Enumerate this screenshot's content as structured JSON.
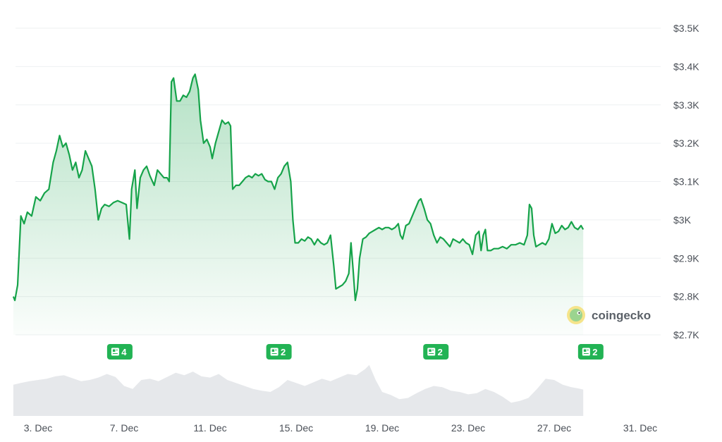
{
  "chart_data": {
    "type": "area",
    "series": [
      {
        "values": [
          [
            1.85,
            2800
          ],
          [
            1.92,
            2790
          ],
          [
            2.05,
            2830
          ],
          [
            2.2,
            3010
          ],
          [
            2.35,
            2990
          ],
          [
            2.5,
            3020
          ],
          [
            2.7,
            3010
          ],
          [
            2.9,
            3060
          ],
          [
            3.1,
            3050
          ],
          [
            3.3,
            3070
          ],
          [
            3.5,
            3080
          ],
          [
            3.7,
            3150
          ],
          [
            3.85,
            3180
          ],
          [
            4.0,
            3220
          ],
          [
            4.15,
            3190
          ],
          [
            4.3,
            3200
          ],
          [
            4.45,
            3170
          ],
          [
            4.6,
            3130
          ],
          [
            4.75,
            3150
          ],
          [
            4.9,
            3110
          ],
          [
            5.05,
            3130
          ],
          [
            5.2,
            3180
          ],
          [
            5.35,
            3160
          ],
          [
            5.5,
            3140
          ],
          [
            5.65,
            3080
          ],
          [
            5.8,
            3000
          ],
          [
            5.95,
            3030
          ],
          [
            6.1,
            3040
          ],
          [
            6.3,
            3035
          ],
          [
            6.5,
            3045
          ],
          [
            6.7,
            3050
          ],
          [
            6.9,
            3045
          ],
          [
            7.1,
            3040
          ],
          [
            7.25,
            2950
          ],
          [
            7.35,
            3080
          ],
          [
            7.5,
            3130
          ],
          [
            7.6,
            3030
          ],
          [
            7.75,
            3110
          ],
          [
            7.9,
            3130
          ],
          [
            8.05,
            3140
          ],
          [
            8.2,
            3115
          ],
          [
            8.4,
            3090
          ],
          [
            8.55,
            3130
          ],
          [
            8.7,
            3120
          ],
          [
            8.85,
            3110
          ],
          [
            9.0,
            3110
          ],
          [
            9.1,
            3100
          ],
          [
            9.2,
            3360
          ],
          [
            9.3,
            3370
          ],
          [
            9.45,
            3310
          ],
          [
            9.6,
            3310
          ],
          [
            9.75,
            3325
          ],
          [
            9.9,
            3320
          ],
          [
            10.05,
            3335
          ],
          [
            10.2,
            3370
          ],
          [
            10.3,
            3380
          ],
          [
            10.45,
            3340
          ],
          [
            10.55,
            3260
          ],
          [
            10.7,
            3200
          ],
          [
            10.85,
            3210
          ],
          [
            11.0,
            3190
          ],
          [
            11.1,
            3160
          ],
          [
            11.25,
            3200
          ],
          [
            11.4,
            3230
          ],
          [
            11.55,
            3260
          ],
          [
            11.7,
            3250
          ],
          [
            11.85,
            3255
          ],
          [
            11.95,
            3245
          ],
          [
            12.05,
            3080
          ],
          [
            12.2,
            3090
          ],
          [
            12.35,
            3090
          ],
          [
            12.5,
            3100
          ],
          [
            12.65,
            3110
          ],
          [
            12.8,
            3115
          ],
          [
            12.95,
            3110
          ],
          [
            13.1,
            3120
          ],
          [
            13.25,
            3115
          ],
          [
            13.4,
            3120
          ],
          [
            13.55,
            3105
          ],
          [
            13.7,
            3100
          ],
          [
            13.85,
            3100
          ],
          [
            14.0,
            3080
          ],
          [
            14.15,
            3110
          ],
          [
            14.3,
            3120
          ],
          [
            14.45,
            3140
          ],
          [
            14.6,
            3150
          ],
          [
            14.75,
            3100
          ],
          [
            14.85,
            3000
          ],
          [
            14.95,
            2940
          ],
          [
            15.1,
            2940
          ],
          [
            15.25,
            2950
          ],
          [
            15.4,
            2945
          ],
          [
            15.55,
            2955
          ],
          [
            15.7,
            2950
          ],
          [
            15.85,
            2935
          ],
          [
            16.0,
            2950
          ],
          [
            16.15,
            2940
          ],
          [
            16.3,
            2935
          ],
          [
            16.45,
            2940
          ],
          [
            16.6,
            2960
          ],
          [
            16.75,
            2880
          ],
          [
            16.85,
            2820
          ],
          [
            17.0,
            2825
          ],
          [
            17.15,
            2830
          ],
          [
            17.3,
            2840
          ],
          [
            17.45,
            2860
          ],
          [
            17.55,
            2940
          ],
          [
            17.65,
            2870
          ],
          [
            17.75,
            2790
          ],
          [
            17.85,
            2820
          ],
          [
            17.95,
            2900
          ],
          [
            18.1,
            2950
          ],
          [
            18.25,
            2955
          ],
          [
            18.4,
            2965
          ],
          [
            18.55,
            2970
          ],
          [
            18.7,
            2975
          ],
          [
            18.85,
            2980
          ],
          [
            19.0,
            2975
          ],
          [
            19.15,
            2980
          ],
          [
            19.3,
            2980
          ],
          [
            19.45,
            2975
          ],
          [
            19.6,
            2980
          ],
          [
            19.75,
            2990
          ],
          [
            19.85,
            2960
          ],
          [
            19.95,
            2950
          ],
          [
            20.1,
            2985
          ],
          [
            20.25,
            2990
          ],
          [
            20.4,
            3010
          ],
          [
            20.55,
            3030
          ],
          [
            20.7,
            3050
          ],
          [
            20.8,
            3055
          ],
          [
            20.95,
            3030
          ],
          [
            21.1,
            3000
          ],
          [
            21.25,
            2990
          ],
          [
            21.4,
            2960
          ],
          [
            21.55,
            2940
          ],
          [
            21.7,
            2955
          ],
          [
            21.85,
            2950
          ],
          [
            22.0,
            2940
          ],
          [
            22.15,
            2930
          ],
          [
            22.3,
            2950
          ],
          [
            22.45,
            2945
          ],
          [
            22.6,
            2940
          ],
          [
            22.75,
            2950
          ],
          [
            22.9,
            2940
          ],
          [
            23.05,
            2935
          ],
          [
            23.2,
            2910
          ],
          [
            23.35,
            2960
          ],
          [
            23.5,
            2970
          ],
          [
            23.6,
            2920
          ],
          [
            23.7,
            2960
          ],
          [
            23.8,
            2975
          ],
          [
            23.9,
            2920
          ],
          [
            24.05,
            2920
          ],
          [
            24.2,
            2925
          ],
          [
            24.4,
            2925
          ],
          [
            24.6,
            2930
          ],
          [
            24.8,
            2925
          ],
          [
            25.0,
            2935
          ],
          [
            25.2,
            2935
          ],
          [
            25.4,
            2940
          ],
          [
            25.6,
            2935
          ],
          [
            25.75,
            2960
          ],
          [
            25.85,
            3040
          ],
          [
            25.95,
            3030
          ],
          [
            26.05,
            2960
          ],
          [
            26.15,
            2930
          ],
          [
            26.3,
            2935
          ],
          [
            26.45,
            2940
          ],
          [
            26.6,
            2935
          ],
          [
            26.75,
            2950
          ],
          [
            26.9,
            2990
          ],
          [
            27.05,
            2965
          ],
          [
            27.2,
            2970
          ],
          [
            27.35,
            2985
          ],
          [
            27.5,
            2975
          ],
          [
            27.65,
            2980
          ],
          [
            27.8,
            2995
          ],
          [
            27.95,
            2980
          ],
          [
            28.1,
            2975
          ],
          [
            28.25,
            2985
          ],
          [
            28.35,
            2975
          ]
        ]
      }
    ],
    "volume": [
      [
        1.85,
        0.52
      ],
      [
        2.2,
        0.55
      ],
      [
        2.6,
        0.58
      ],
      [
        3.0,
        0.6
      ],
      [
        3.4,
        0.62
      ],
      [
        3.8,
        0.66
      ],
      [
        4.2,
        0.68
      ],
      [
        4.6,
        0.63
      ],
      [
        5.0,
        0.58
      ],
      [
        5.4,
        0.6
      ],
      [
        5.8,
        0.64
      ],
      [
        6.2,
        0.7
      ],
      [
        6.6,
        0.65
      ],
      [
        7.0,
        0.5
      ],
      [
        7.4,
        0.45
      ],
      [
        7.8,
        0.6
      ],
      [
        8.2,
        0.62
      ],
      [
        8.6,
        0.58
      ],
      [
        9.0,
        0.65
      ],
      [
        9.4,
        0.72
      ],
      [
        9.8,
        0.68
      ],
      [
        10.2,
        0.74
      ],
      [
        10.6,
        0.66
      ],
      [
        11.0,
        0.64
      ],
      [
        11.4,
        0.7
      ],
      [
        11.8,
        0.6
      ],
      [
        12.2,
        0.55
      ],
      [
        12.6,
        0.5
      ],
      [
        13.0,
        0.45
      ],
      [
        13.4,
        0.42
      ],
      [
        13.8,
        0.4
      ],
      [
        14.2,
        0.48
      ],
      [
        14.6,
        0.6
      ],
      [
        15.0,
        0.55
      ],
      [
        15.4,
        0.5
      ],
      [
        15.8,
        0.56
      ],
      [
        16.2,
        0.62
      ],
      [
        16.6,
        0.58
      ],
      [
        17.0,
        0.64
      ],
      [
        17.4,
        0.7
      ],
      [
        17.8,
        0.68
      ],
      [
        18.2,
        0.78
      ],
      [
        18.4,
        0.85
      ],
      [
        18.7,
        0.6
      ],
      [
        19.0,
        0.4
      ],
      [
        19.4,
        0.35
      ],
      [
        19.8,
        0.28
      ],
      [
        20.2,
        0.3
      ],
      [
        20.6,
        0.38
      ],
      [
        21.0,
        0.45
      ],
      [
        21.4,
        0.5
      ],
      [
        21.8,
        0.48
      ],
      [
        22.2,
        0.42
      ],
      [
        22.6,
        0.4
      ],
      [
        23.0,
        0.36
      ],
      [
        23.4,
        0.38
      ],
      [
        23.8,
        0.45
      ],
      [
        24.2,
        0.4
      ],
      [
        24.6,
        0.32
      ],
      [
        25.0,
        0.22
      ],
      [
        25.4,
        0.25
      ],
      [
        25.8,
        0.3
      ],
      [
        26.2,
        0.45
      ],
      [
        26.6,
        0.62
      ],
      [
        27.0,
        0.6
      ],
      [
        27.4,
        0.52
      ],
      [
        27.8,
        0.48
      ],
      [
        28.1,
        0.46
      ],
      [
        28.35,
        0.44
      ]
    ],
    "x_ticks": [
      {
        "pos": 3,
        "label": "3. Dec"
      },
      {
        "pos": 7,
        "label": "7. Dec"
      },
      {
        "pos": 11,
        "label": "11. Dec"
      },
      {
        "pos": 15,
        "label": "15. Dec"
      },
      {
        "pos": 19,
        "label": "19. Dec"
      },
      {
        "pos": 23,
        "label": "23. Dec"
      },
      {
        "pos": 27,
        "label": "27. Dec"
      },
      {
        "pos": 31,
        "label": "31. Dec"
      }
    ],
    "y_ticks": [
      {
        "value": 3500,
        "label": "$3.5K"
      },
      {
        "value": 3400,
        "label": "$3.4K"
      },
      {
        "value": 3300,
        "label": "$3.3K"
      },
      {
        "value": 3200,
        "label": "$3.2K"
      },
      {
        "value": 3100,
        "label": "$3.1K"
      },
      {
        "value": 3000,
        "label": "$3K"
      },
      {
        "value": 2900,
        "label": "$2.9K"
      },
      {
        "value": 2800,
        "label": "$2.8K"
      },
      {
        "value": 2700,
        "label": "$2.7K"
      }
    ],
    "ylim": [
      2700,
      3500
    ],
    "grid": true,
    "y_axis_side": "right",
    "news_markers": [
      {
        "pos": 6.8,
        "count": "4"
      },
      {
        "pos": 14.2,
        "count": "2"
      },
      {
        "pos": 21.5,
        "count": "2"
      },
      {
        "pos": 28.7,
        "count": "2"
      }
    ],
    "watermark": "coingecko",
    "colors": {
      "line": "#16a34a",
      "area_top": "#b9e8c6",
      "volume": "#e6e8eb",
      "news_badge": "#22b354",
      "grid": "#eef0f2",
      "tick_text": "#4a4f57"
    }
  }
}
